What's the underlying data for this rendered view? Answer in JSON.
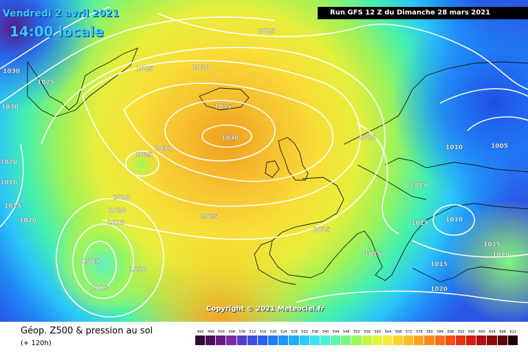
{
  "header": {
    "date": "Vendredi 2 avril 2021",
    "local_time": "14:00 locale",
    "run_info": "Run GFS 12 Z du Dimanche 28 mars 2021"
  },
  "map": {
    "copyright": "Copyright © 2021 Meteociel.fr",
    "isobar_labels": [
      "1015",
      "1025",
      "1020",
      "1030",
      "1025",
      "1030",
      "1035",
      "1040",
      "1030",
      "1025",
      "1020",
      "1010",
      "1015",
      "1020",
      "1005",
      "1010",
      "1005",
      "1025",
      "1015",
      "1015",
      "1020",
      "1015",
      "1010",
      "1005",
      "1015",
      "1010",
      "1015",
      "1015",
      "1010",
      "1015",
      "1020",
      "1010",
      "1020"
    ]
  },
  "legend": {
    "title": "Géop. Z500 & pression au sol",
    "subtitle": "(+ 120h)",
    "scale_values": [
      "492",
      "496",
      "500",
      "504",
      "508",
      "512",
      "516",
      "520",
      "524",
      "528",
      "532",
      "536",
      "540",
      "544",
      "548",
      "552",
      "556",
      "560",
      "564",
      "568",
      "572",
      "576",
      "580",
      "584",
      "588",
      "592",
      "596",
      "600",
      "604",
      "608",
      "612"
    ],
    "scale_colors": [
      "#2d0a3a",
      "#4a0f5e",
      "#6a1a86",
      "#7e2aa8",
      "#5a3ac8",
      "#3c4ee0",
      "#2a62f0",
      "#1f7cf6",
      "#1f95fa",
      "#22aefc",
      "#2ec8fc",
      "#3ce0f0",
      "#4cf0d0",
      "#5cf6a8",
      "#7af680",
      "#9cf65c",
      "#c4f446",
      "#e4f23c",
      "#f6ea36",
      "#fcd42e",
      "#fcbc28",
      "#fca224",
      "#fc8820",
      "#fc6c1c",
      "#f84c18",
      "#e83214",
      "#d01c12",
      "#b20e10",
      "#8c0a0e",
      "#5c0608",
      "#1a0202"
    ]
  }
}
